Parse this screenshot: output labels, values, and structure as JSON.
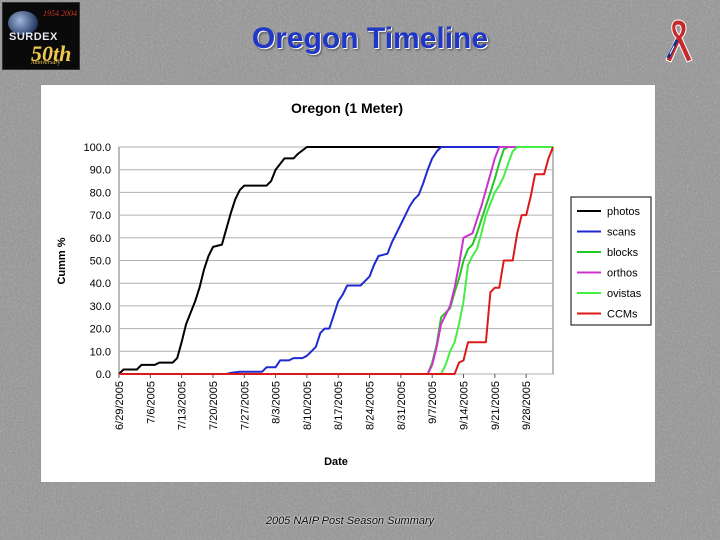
{
  "slide": {
    "title": "Oregon Timeline",
    "footer": "2005 NAIP Post Season Summary",
    "logo": {
      "brand": "SURDEX",
      "years": "1954  2004",
      "anniversary": "50th",
      "anniversary_word": "Anniversary"
    }
  },
  "chart_data": {
    "type": "line",
    "title": "Oregon (1 Meter)",
    "xlabel": "Date",
    "ylabel": "Cumm %",
    "x_start": "6/29/2005",
    "x_end": "10/4/2005",
    "x_ticks": [
      "6/29/2005",
      "7/6/2005",
      "7/13/2005",
      "7/20/2005",
      "7/27/2005",
      "8/3/2005",
      "8/10/2005",
      "8/17/2005",
      "8/24/2005",
      "8/31/2005",
      "9/7/2005",
      "9/14/2005",
      "9/21/2005",
      "9/28/2005"
    ],
    "y_ticks": [
      "0.0",
      "10.0",
      "20.0",
      "30.0",
      "40.0",
      "50.0",
      "60.0",
      "70.0",
      "80.0",
      "90.0",
      "100.0"
    ],
    "ylim": [
      0,
      100
    ],
    "grid": "horizontal",
    "legend_position": "right",
    "series": [
      {
        "name": "photos",
        "color": "#000000",
        "points": [
          [
            "6/29/2005",
            0
          ],
          [
            "6/30/2005",
            2
          ],
          [
            "7/3/2005",
            2
          ],
          [
            "7/4/2005",
            4
          ],
          [
            "7/7/2005",
            4
          ],
          [
            "7/8/2005",
            5
          ],
          [
            "7/11/2005",
            5
          ],
          [
            "7/12/2005",
            7
          ],
          [
            "7/13/2005",
            14
          ],
          [
            "7/14/2005",
            22
          ],
          [
            "7/15/2005",
            27
          ],
          [
            "7/16/2005",
            32
          ],
          [
            "7/17/2005",
            38
          ],
          [
            "7/18/2005",
            46
          ],
          [
            "7/19/2005",
            52
          ],
          [
            "7/20/2005",
            56
          ],
          [
            "7/22/2005",
            57
          ],
          [
            "7/23/2005",
            64
          ],
          [
            "7/24/2005",
            71
          ],
          [
            "7/25/2005",
            77
          ],
          [
            "7/26/2005",
            81
          ],
          [
            "7/27/2005",
            83
          ],
          [
            "8/1/2005",
            83
          ],
          [
            "8/2/2005",
            85
          ],
          [
            "8/3/2005",
            90
          ],
          [
            "8/5/2005",
            95
          ],
          [
            "8/7/2005",
            95
          ],
          [
            "8/8/2005",
            97
          ],
          [
            "8/10/2005",
            100
          ],
          [
            "10/4/2005",
            100
          ]
        ]
      },
      {
        "name": "scans",
        "color": "#1f2ad0",
        "points": [
          [
            "6/29/2005",
            0
          ],
          [
            "7/23/2005",
            0
          ],
          [
            "7/24/2005",
            0.5
          ],
          [
            "7/26/2005",
            1
          ],
          [
            "7/31/2005",
            1
          ],
          [
            "8/1/2005",
            3
          ],
          [
            "8/3/2005",
            3
          ],
          [
            "8/4/2005",
            6
          ],
          [
            "8/6/2005",
            6
          ],
          [
            "8/7/2005",
            7
          ],
          [
            "8/9/2005",
            7
          ],
          [
            "8/10/2005",
            8
          ],
          [
            "8/11/2005",
            10
          ],
          [
            "8/12/2005",
            12
          ],
          [
            "8/13/2005",
            18
          ],
          [
            "8/14/2005",
            20
          ],
          [
            "8/15/2005",
            20
          ],
          [
            "8/16/2005",
            26
          ],
          [
            "8/17/2005",
            32
          ],
          [
            "8/18/2005",
            35
          ],
          [
            "8/19/2005",
            39
          ],
          [
            "8/22/2005",
            39
          ],
          [
            "8/23/2005",
            41
          ],
          [
            "8/24/2005",
            43
          ],
          [
            "8/25/2005",
            48
          ],
          [
            "8/26/2005",
            52
          ],
          [
            "8/28/2005",
            53
          ],
          [
            "8/29/2005",
            58
          ],
          [
            "8/30/2005",
            62
          ],
          [
            "8/31/2005",
            66
          ],
          [
            "9/1/2005",
            70
          ],
          [
            "9/2/2005",
            74
          ],
          [
            "9/3/2005",
            77
          ],
          [
            "9/4/2005",
            79
          ],
          [
            "9/5/2005",
            84
          ],
          [
            "9/6/2005",
            90
          ],
          [
            "9/7/2005",
            95
          ],
          [
            "9/8/2005",
            98
          ],
          [
            "9/9/2005",
            100
          ],
          [
            "10/4/2005",
            100
          ]
        ]
      },
      {
        "name": "blocks",
        "color": "#22c822",
        "points": [
          [
            "6/29/2005",
            0
          ],
          [
            "9/6/2005",
            0
          ],
          [
            "9/7/2005",
            5
          ],
          [
            "9/8/2005",
            13
          ],
          [
            "9/9/2005",
            25
          ],
          [
            "9/10/2005",
            27
          ],
          [
            "9/11/2005",
            29
          ],
          [
            "9/12/2005",
            36
          ],
          [
            "9/13/2005",
            42
          ],
          [
            "9/14/2005",
            50
          ],
          [
            "9/15/2005",
            55
          ],
          [
            "9/16/2005",
            57
          ],
          [
            "9/17/2005",
            62
          ],
          [
            "9/18/2005",
            68
          ],
          [
            "9/19/2005",
            74
          ],
          [
            "9/20/2005",
            80
          ],
          [
            "9/21/2005",
            86
          ],
          [
            "9/22/2005",
            93
          ],
          [
            "9/23/2005",
            99
          ],
          [
            "9/24/2005",
            100
          ],
          [
            "10/4/2005",
            100
          ]
        ]
      },
      {
        "name": "orthos",
        "color": "#cc33cc",
        "points": [
          [
            "6/29/2005",
            0
          ],
          [
            "9/6/2005",
            0
          ],
          [
            "9/7/2005",
            4
          ],
          [
            "9/8/2005",
            12
          ],
          [
            "9/9/2005",
            22
          ],
          [
            "9/10/2005",
            26
          ],
          [
            "9/11/2005",
            30
          ],
          [
            "9/12/2005",
            38
          ],
          [
            "9/13/2005",
            48
          ],
          [
            "9/14/2005",
            60
          ],
          [
            "9/15/2005",
            61
          ],
          [
            "9/16/2005",
            62
          ],
          [
            "9/17/2005",
            68
          ],
          [
            "9/18/2005",
            74
          ],
          [
            "9/19/2005",
            81
          ],
          [
            "9/20/2005",
            88
          ],
          [
            "9/21/2005",
            95
          ],
          [
            "9/22/2005",
            100
          ],
          [
            "10/4/2005",
            100
          ]
        ]
      },
      {
        "name": "ovistas",
        "color": "#44ee44",
        "points": [
          [
            "6/29/2005",
            0
          ],
          [
            "9/9/2005",
            0
          ],
          [
            "9/10/2005",
            4
          ],
          [
            "9/11/2005",
            10
          ],
          [
            "9/12/2005",
            14
          ],
          [
            "9/13/2005",
            22
          ],
          [
            "9/14/2005",
            32
          ],
          [
            "9/15/2005",
            48
          ],
          [
            "9/16/2005",
            52
          ],
          [
            "9/17/2005",
            55
          ],
          [
            "9/18/2005",
            62
          ],
          [
            "9/19/2005",
            70
          ],
          [
            "9/20/2005",
            75
          ],
          [
            "9/21/2005",
            80
          ],
          [
            "9/22/2005",
            83
          ],
          [
            "9/23/2005",
            87
          ],
          [
            "9/24/2005",
            93
          ],
          [
            "9/25/2005",
            98
          ],
          [
            "9/26/2005",
            100
          ],
          [
            "10/4/2005",
            100
          ]
        ]
      },
      {
        "name": "CCMs",
        "color": "#dd1a1a",
        "points": [
          [
            "6/29/2005",
            0
          ],
          [
            "9/12/2005",
            0
          ],
          [
            "9/13/2005",
            5
          ],
          [
            "9/14/2005",
            6
          ],
          [
            "9/15/2005",
            14
          ],
          [
            "9/19/2005",
            14
          ],
          [
            "9/20/2005",
            36
          ],
          [
            "9/21/2005",
            38
          ],
          [
            "9/22/2005",
            38
          ],
          [
            "9/23/2005",
            50
          ],
          [
            "9/25/2005",
            50
          ],
          [
            "9/26/2005",
            62
          ],
          [
            "9/27/2005",
            70
          ],
          [
            "9/28/2005",
            70
          ],
          [
            "9/29/2005",
            78
          ],
          [
            "9/30/2005",
            88
          ],
          [
            "10/2/2005",
            88
          ],
          [
            "10/3/2005",
            95
          ],
          [
            "10/4/2005",
            100
          ]
        ]
      }
    ]
  }
}
